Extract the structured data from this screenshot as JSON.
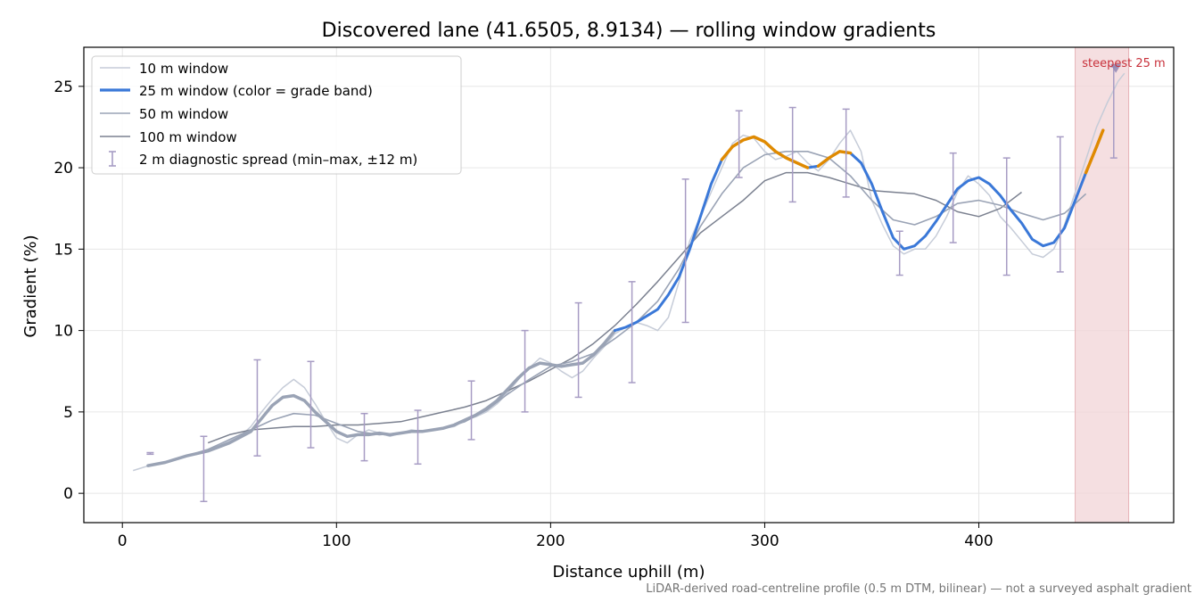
{
  "chart_data": {
    "type": "line",
    "title": "Discovered lane (41.6505, 8.9134) — rolling window gradients",
    "xlabel": "Distance uphill (m)",
    "ylabel": "Gradient (%)",
    "xlim": [
      -18,
      491
    ],
    "ylim": [
      -1.8,
      27.4
    ],
    "x_ticks": [
      0,
      100,
      200,
      300,
      400
    ],
    "y_ticks": [
      0,
      5,
      10,
      15,
      20,
      25
    ],
    "grid": true,
    "legend_position": "upper-left",
    "footnote": "LiDAR-derived road-centreline profile (0.5 m DTM, bilinear) — not a surveyed asphalt gradient",
    "steepest_label": "steepest 25 m",
    "steepest_span": [
      445,
      470
    ],
    "steepest_marker": [
      464,
      26.1
    ],
    "colors": {
      "blue": "#3a78d8",
      "orange": "#e08a00",
      "band": "#f2d4d7",
      "steepest_text": "#c8303a",
      "errbar": "#a79cc4"
    },
    "series": [
      {
        "name": "10 m window",
        "color": "#c6ccd8",
        "points": [
          [
            5,
            1.4
          ],
          [
            10,
            1.6
          ],
          [
            15,
            1.8
          ],
          [
            20,
            1.9
          ],
          [
            25,
            2.1
          ],
          [
            30,
            2.3
          ],
          [
            35,
            2.4
          ],
          [
            40,
            2.6
          ],
          [
            45,
            2.9
          ],
          [
            50,
            3.2
          ],
          [
            55,
            3.5
          ],
          [
            60,
            4.1
          ],
          [
            65,
            5.0
          ],
          [
            70,
            5.8
          ],
          [
            75,
            6.5
          ],
          [
            80,
            7.0
          ],
          [
            85,
            6.5
          ],
          [
            90,
            5.5
          ],
          [
            95,
            4.4
          ],
          [
            100,
            3.4
          ],
          [
            105,
            3.1
          ],
          [
            110,
            3.6
          ],
          [
            115,
            3.9
          ],
          [
            120,
            3.7
          ],
          [
            125,
            3.5
          ],
          [
            130,
            3.7
          ],
          [
            135,
            3.9
          ],
          [
            140,
            3.8
          ],
          [
            145,
            3.9
          ],
          [
            150,
            4.0
          ],
          [
            155,
            4.1
          ],
          [
            160,
            4.5
          ],
          [
            165,
            4.7
          ],
          [
            170,
            5.0
          ],
          [
            175,
            5.5
          ],
          [
            180,
            6.2
          ],
          [
            185,
            7.0
          ],
          [
            190,
            7.7
          ],
          [
            195,
            8.3
          ],
          [
            200,
            8.0
          ],
          [
            205,
            7.5
          ],
          [
            210,
            7.1
          ],
          [
            215,
            7.5
          ],
          [
            220,
            8.3
          ],
          [
            225,
            9.0
          ],
          [
            230,
            9.8
          ],
          [
            235,
            10.2
          ],
          [
            240,
            10.5
          ],
          [
            245,
            10.3
          ],
          [
            250,
            10.0
          ],
          [
            255,
            10.8
          ],
          [
            260,
            13.0
          ],
          [
            265,
            15.5
          ],
          [
            270,
            17.0
          ],
          [
            275,
            18.5
          ],
          [
            280,
            20.0
          ],
          [
            285,
            21.5
          ],
          [
            290,
            22.0
          ],
          [
            295,
            21.8
          ],
          [
            300,
            21.0
          ],
          [
            305,
            20.5
          ],
          [
            310,
            20.7
          ],
          [
            315,
            21.0
          ],
          [
            320,
            20.3
          ],
          [
            325,
            19.8
          ],
          [
            330,
            20.5
          ],
          [
            335,
            21.5
          ],
          [
            340,
            22.3
          ],
          [
            345,
            21.0
          ],
          [
            350,
            18.0
          ],
          [
            355,
            16.5
          ],
          [
            360,
            15.2
          ],
          [
            365,
            14.7
          ],
          [
            370,
            15.0
          ],
          [
            375,
            15.0
          ],
          [
            380,
            15.8
          ],
          [
            385,
            17.0
          ],
          [
            390,
            18.5
          ],
          [
            395,
            19.5
          ],
          [
            400,
            19.0
          ],
          [
            405,
            18.3
          ],
          [
            410,
            17.0
          ],
          [
            415,
            16.3
          ],
          [
            420,
            15.5
          ],
          [
            425,
            14.7
          ],
          [
            430,
            14.5
          ],
          [
            435,
            15.0
          ],
          [
            440,
            16.5
          ],
          [
            445,
            18.5
          ],
          [
            450,
            20.5
          ],
          [
            455,
            22.5
          ],
          [
            460,
            24.0
          ],
          [
            465,
            25.3
          ],
          [
            468,
            25.8
          ]
        ]
      },
      {
        "name": "25 m window (color = grade band)",
        "color": "#3a78d8",
        "points": [
          [
            12,
            1.7
          ],
          [
            20,
            1.9
          ],
          [
            30,
            2.3
          ],
          [
            40,
            2.6
          ],
          [
            50,
            3.1
          ],
          [
            60,
            3.8
          ],
          [
            65,
            4.6
          ],
          [
            70,
            5.4
          ],
          [
            75,
            5.9
          ],
          [
            80,
            6.0
          ],
          [
            85,
            5.7
          ],
          [
            90,
            5.0
          ],
          [
            95,
            4.4
          ],
          [
            100,
            3.8
          ],
          [
            105,
            3.5
          ],
          [
            110,
            3.6
          ],
          [
            115,
            3.6
          ],
          [
            120,
            3.7
          ],
          [
            125,
            3.6
          ],
          [
            130,
            3.7
          ],
          [
            135,
            3.8
          ],
          [
            140,
            3.8
          ],
          [
            145,
            3.9
          ],
          [
            150,
            4.0
          ],
          [
            155,
            4.2
          ],
          [
            160,
            4.5
          ],
          [
            165,
            4.8
          ],
          [
            170,
            5.2
          ],
          [
            175,
            5.7
          ],
          [
            180,
            6.4
          ],
          [
            185,
            7.1
          ],
          [
            190,
            7.7
          ],
          [
            195,
            8.0
          ],
          [
            200,
            7.9
          ],
          [
            205,
            7.8
          ],
          [
            210,
            7.9
          ],
          [
            215,
            8.0
          ],
          [
            220,
            8.5
          ],
          [
            225,
            9.2
          ],
          [
            230,
            10.0
          ],
          [
            235,
            10.2
          ],
          [
            240,
            10.5
          ],
          [
            245,
            10.9
          ],
          [
            250,
            11.3
          ],
          [
            255,
            12.2
          ],
          [
            260,
            13.3
          ],
          [
            265,
            15.0
          ],
          [
            270,
            17.0
          ],
          [
            275,
            19.0
          ],
          [
            280,
            20.5
          ],
          [
            285,
            21.3
          ],
          [
            290,
            21.7
          ],
          [
            295,
            21.9
          ],
          [
            300,
            21.6
          ],
          [
            305,
            21.0
          ],
          [
            310,
            20.6
          ],
          [
            315,
            20.3
          ],
          [
            320,
            20.0
          ],
          [
            325,
            20.1
          ],
          [
            330,
            20.6
          ],
          [
            335,
            21.0
          ],
          [
            340,
            20.9
          ],
          [
            345,
            20.3
          ],
          [
            350,
            19.0
          ],
          [
            355,
            17.3
          ],
          [
            360,
            15.7
          ],
          [
            365,
            15.0
          ],
          [
            370,
            15.2
          ],
          [
            375,
            15.8
          ],
          [
            380,
            16.7
          ],
          [
            385,
            17.7
          ],
          [
            390,
            18.7
          ],
          [
            395,
            19.2
          ],
          [
            400,
            19.4
          ],
          [
            405,
            19.0
          ],
          [
            410,
            18.3
          ],
          [
            415,
            17.4
          ],
          [
            420,
            16.6
          ],
          [
            425,
            15.6
          ],
          [
            430,
            15.2
          ],
          [
            435,
            15.4
          ],
          [
            440,
            16.3
          ],
          [
            445,
            18.0
          ],
          [
            450,
            19.7
          ],
          [
            455,
            21.3
          ],
          [
            458,
            22.3
          ]
        ],
        "orange_ranges": [
          [
            278,
            320
          ],
          [
            323,
            343
          ],
          [
            448,
            458
          ]
        ]
      },
      {
        "name": "50 m window",
        "color": "#9aa3b5",
        "points": [
          [
            12,
            1.7
          ],
          [
            20,
            1.9
          ],
          [
            30,
            2.3
          ],
          [
            40,
            2.7
          ],
          [
            50,
            3.3
          ],
          [
            60,
            3.9
          ],
          [
            70,
            4.5
          ],
          [
            80,
            4.9
          ],
          [
            90,
            4.8
          ],
          [
            100,
            4.3
          ],
          [
            110,
            3.8
          ],
          [
            120,
            3.6
          ],
          [
            130,
            3.7
          ],
          [
            140,
            3.8
          ],
          [
            150,
            4.0
          ],
          [
            160,
            4.4
          ],
          [
            170,
            5.1
          ],
          [
            180,
            6.1
          ],
          [
            190,
            7.0
          ],
          [
            200,
            7.8
          ],
          [
            210,
            8.1
          ],
          [
            220,
            8.6
          ],
          [
            230,
            9.5
          ],
          [
            240,
            10.5
          ],
          [
            250,
            11.8
          ],
          [
            260,
            13.8
          ],
          [
            270,
            16.4
          ],
          [
            280,
            18.4
          ],
          [
            290,
            20.0
          ],
          [
            300,
            20.8
          ],
          [
            310,
            21.0
          ],
          [
            320,
            21.0
          ],
          [
            330,
            20.6
          ],
          [
            340,
            19.5
          ],
          [
            350,
            18.0
          ],
          [
            360,
            16.8
          ],
          [
            370,
            16.5
          ],
          [
            380,
            17.0
          ],
          [
            390,
            17.8
          ],
          [
            400,
            18.0
          ],
          [
            410,
            17.7
          ],
          [
            420,
            17.2
          ],
          [
            430,
            16.8
          ],
          [
            440,
            17.2
          ],
          [
            450,
            18.4
          ]
        ]
      },
      {
        "name": "100 m window",
        "color": "#7b8190",
        "points": [
          [
            40,
            3.1
          ],
          [
            50,
            3.6
          ],
          [
            60,
            3.9
          ],
          [
            70,
            4.0
          ],
          [
            80,
            4.1
          ],
          [
            90,
            4.1
          ],
          [
            100,
            4.2
          ],
          [
            110,
            4.2
          ],
          [
            120,
            4.3
          ],
          [
            130,
            4.4
          ],
          [
            140,
            4.7
          ],
          [
            150,
            5.0
          ],
          [
            160,
            5.3
          ],
          [
            170,
            5.7
          ],
          [
            180,
            6.3
          ],
          [
            190,
            6.9
          ],
          [
            200,
            7.6
          ],
          [
            210,
            8.3
          ],
          [
            220,
            9.2
          ],
          [
            230,
            10.3
          ],
          [
            240,
            11.6
          ],
          [
            250,
            13.0
          ],
          [
            260,
            14.5
          ],
          [
            270,
            16.0
          ],
          [
            280,
            17.0
          ],
          [
            290,
            18.0
          ],
          [
            300,
            19.2
          ],
          [
            310,
            19.7
          ],
          [
            320,
            19.7
          ],
          [
            330,
            19.4
          ],
          [
            340,
            19.0
          ],
          [
            350,
            18.6
          ],
          [
            360,
            18.5
          ],
          [
            370,
            18.4
          ],
          [
            380,
            18.0
          ],
          [
            390,
            17.3
          ],
          [
            400,
            17.0
          ],
          [
            410,
            17.5
          ],
          [
            420,
            18.5
          ]
        ]
      }
    ],
    "error_bars": {
      "name": "2 m diagnostic spread (min–max, ±12 m)",
      "points": [
        {
          "x": 13,
          "min": 2.4,
          "max": 2.5
        },
        {
          "x": 38,
          "min": -0.5,
          "max": 3.5
        },
        {
          "x": 63,
          "min": 2.3,
          "max": 8.2
        },
        {
          "x": 88,
          "min": 2.8,
          "max": 8.1
        },
        {
          "x": 113,
          "min": 2.0,
          "max": 4.9
        },
        {
          "x": 138,
          "min": 1.8,
          "max": 5.1
        },
        {
          "x": 163,
          "min": 3.3,
          "max": 6.9
        },
        {
          "x": 188,
          "min": 5.0,
          "max": 10.0
        },
        {
          "x": 213,
          "min": 5.9,
          "max": 11.7
        },
        {
          "x": 238,
          "min": 6.8,
          "max": 13.0
        },
        {
          "x": 263,
          "min": 10.5,
          "max": 19.3
        },
        {
          "x": 288,
          "min": 19.4,
          "max": 23.5
        },
        {
          "x": 313,
          "min": 17.9,
          "max": 23.7
        },
        {
          "x": 338,
          "min": 18.2,
          "max": 23.6
        },
        {
          "x": 363,
          "min": 13.4,
          "max": 16.1
        },
        {
          "x": 388,
          "min": 15.4,
          "max": 20.9
        },
        {
          "x": 413,
          "min": 13.4,
          "max": 20.6
        },
        {
          "x": 438,
          "min": 13.6,
          "max": 21.9
        },
        {
          "x": 463,
          "min": 20.6,
          "max": 26.2
        }
      ]
    }
  }
}
